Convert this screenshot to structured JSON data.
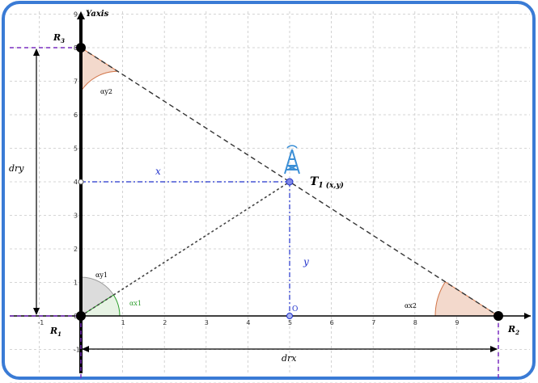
{
  "axes": {
    "y_label": "Yaxis",
    "x_ticks": [
      "-1",
      "0",
      "1",
      "2",
      "3",
      "4",
      "5",
      "6",
      "7",
      "8",
      "9"
    ],
    "y_ticks": [
      "-1",
      "0",
      "1",
      "2",
      "3",
      "4",
      "5",
      "6",
      "7",
      "8",
      "9"
    ]
  },
  "points": {
    "r1": {
      "label": "R",
      "sub": "1",
      "x": 0,
      "y": 0
    },
    "r2": {
      "label": "R",
      "sub": "2",
      "x": 10,
      "y": 0
    },
    "r3": {
      "label": "R",
      "sub": "3",
      "x": 0,
      "y": 8
    },
    "t1": {
      "label": "T",
      "sub": "1",
      "coords": "(x,y)",
      "x": 5,
      "y": 4
    },
    "o": {
      "label": "O",
      "x": 5,
      "y": 0
    }
  },
  "labels": {
    "x_segment": "x",
    "y_segment": "y",
    "drx": "drx",
    "dry": "dry",
    "angle_r1_upper": "αy1",
    "angle_r1_lower": "αx1",
    "angle_r2": "αx2",
    "angle_r3": "αy2"
  },
  "colors": {
    "frame": "#3a7bd5",
    "grid": "#c8c8c8",
    "axis": "#000000",
    "blue_line": "#2233cc",
    "purple": "#7a2fc0",
    "angle_green": "#2a9d2a",
    "angle_fill": "#f3d9cc",
    "angle_stroke": "#d2764a",
    "antenna": "#3b8fd6"
  },
  "icons": {
    "tower": "antenna-tower-icon"
  }
}
